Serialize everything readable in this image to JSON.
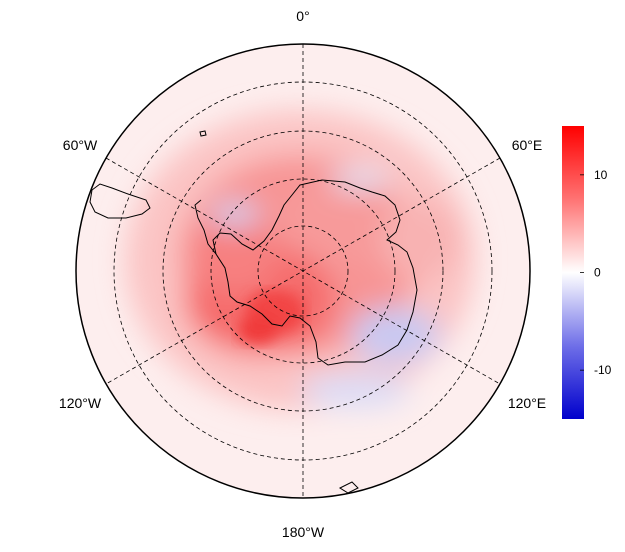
{
  "map": {
    "projection": "south-polar-stereographic",
    "longitude_labels": {
      "top": "0°",
      "upper_left": "60°W",
      "upper_right": "60°E",
      "lower_left": "120°W",
      "lower_right": "120°E",
      "bottom": "180°W"
    },
    "latitude_circles": 4,
    "meridians_every_deg": 60,
    "grid_style": "dashed",
    "coastline_color": "#000000"
  },
  "colorbar": {
    "min": -15,
    "max": 15,
    "ticks": [
      "10",
      "0",
      "-10"
    ],
    "tick_values": [
      10,
      0,
      -10
    ],
    "colors": {
      "low": "#0000cc",
      "mid": "#ffffff",
      "high": "#ff0000"
    }
  }
}
